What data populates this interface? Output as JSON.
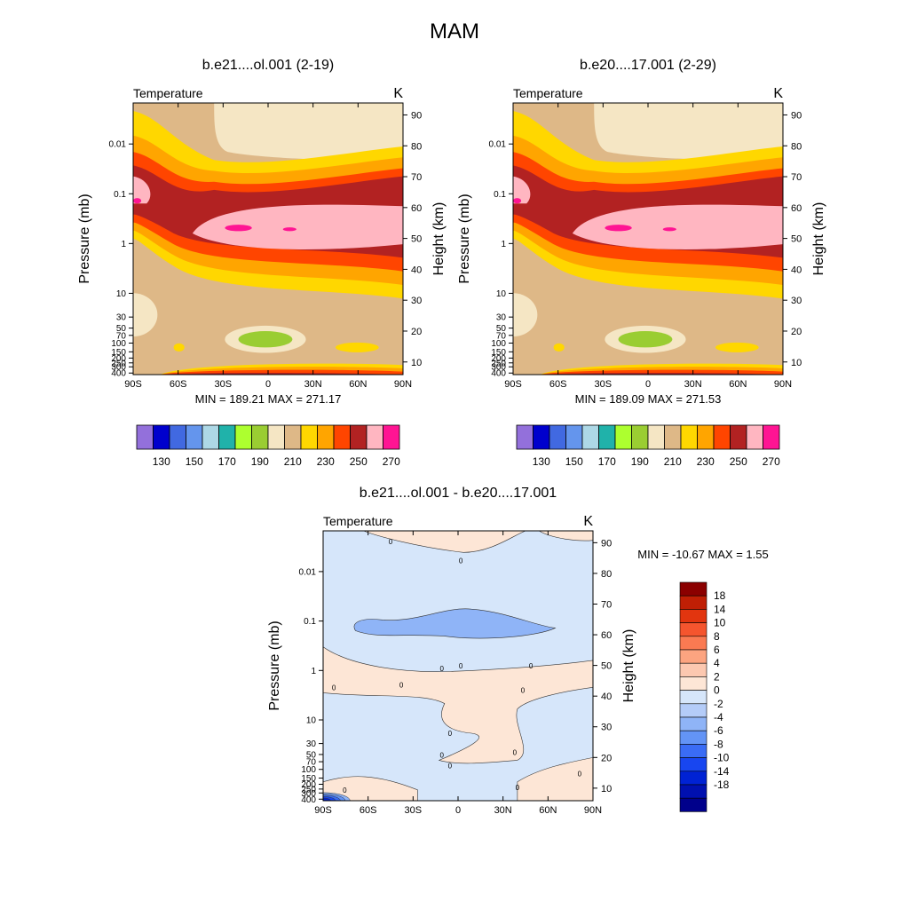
{
  "page": {
    "title": "MAM"
  },
  "colors": {
    "abs_palette": [
      "#9370DB",
      "#0000CD",
      "#4169E1",
      "#6495ED",
      "#ADD8E6",
      "#20B2AA",
      "#ADFF2F",
      "#9ACD32",
      "#F5E6C4",
      "#DEB887",
      "#FFD700",
      "#FFA500",
      "#FF4500",
      "#B22222",
      "#FFB6C1",
      "#FF1493"
    ],
    "diff_palette": [
      "#00008B",
      "#0010B0",
      "#0022D4",
      "#1846F0",
      "#3A6CF5",
      "#6394F6",
      "#8FB4F7",
      "#B4CCF8",
      "#D6E6FA",
      "#FDE6D6",
      "#FCC8B0",
      "#FCA480",
      "#FA7A52",
      "#F5552E",
      "#E2350F",
      "#C01F05",
      "#8B0000"
    ]
  },
  "chart_data": [
    {
      "type": "heatmap",
      "title": "b.e21....ol.001 (2-19)",
      "left_label": "Temperature",
      "units": "K",
      "ylabel": "Pressure (mb)",
      "ylabel_right": "Height (km)",
      "x": [
        "90S",
        "60S",
        "30S",
        "0",
        "30N",
        "60N",
        "90N"
      ],
      "y": [
        "0.01",
        "0.1",
        "1",
        "10",
        "30",
        "50",
        "70",
        "100",
        "150",
        "200",
        "250",
        "300",
        "400"
      ],
      "y_right": [
        "90",
        "80",
        "70",
        "60",
        "50",
        "40",
        "30",
        "20",
        "10"
      ],
      "stats": "MIN = 189.21  MAX = 271.17",
      "colorbar_labels": [
        "130",
        "150",
        "170",
        "190",
        "210",
        "230",
        "250",
        "270"
      ],
      "min": 189.21,
      "max": 271.17
    },
    {
      "type": "heatmap",
      "title": "b.e20....17.001 (2-29)",
      "left_label": "Temperature",
      "units": "K",
      "ylabel": "Pressure (mb)",
      "ylabel_right": "Height (km)",
      "x": [
        "90S",
        "60S",
        "30S",
        "0",
        "30N",
        "60N",
        "90N"
      ],
      "y": [
        "0.01",
        "0.1",
        "1",
        "10",
        "30",
        "50",
        "70",
        "100",
        "150",
        "200",
        "250",
        "300",
        "400"
      ],
      "y_right": [
        "90",
        "80",
        "70",
        "60",
        "50",
        "40",
        "30",
        "20",
        "10"
      ],
      "stats": "MIN = 189.09  MAX = 271.53",
      "colorbar_labels": [
        "130",
        "150",
        "170",
        "190",
        "210",
        "230",
        "250",
        "270"
      ],
      "min": 189.09,
      "max": 271.53
    },
    {
      "type": "heatmap",
      "title": "b.e21....ol.001 - b.e20....17.001",
      "left_label": "Temperature",
      "units": "K",
      "ylabel": "Pressure (mb)",
      "ylabel_right": "Height (km)",
      "x": [
        "90S",
        "60S",
        "30S",
        "0",
        "30N",
        "60N",
        "90N"
      ],
      "y": [
        "0.01",
        "0.1",
        "1",
        "10",
        "30",
        "50",
        "70",
        "100",
        "150",
        "200",
        "250",
        "300",
        "400"
      ],
      "y_right": [
        "90",
        "80",
        "70",
        "60",
        "50",
        "40",
        "30",
        "20",
        "10"
      ],
      "stats": "MIN = -10.67  MAX =   1.55",
      "colorbar_labels": [
        "18",
        "14",
        "10",
        "8",
        "6",
        "4",
        "2",
        "0",
        "-2",
        "-4",
        "-6",
        "-8",
        "-10",
        "-14",
        "-18"
      ],
      "contour_label": "0",
      "min": -10.67,
      "max": 1.55
    }
  ]
}
